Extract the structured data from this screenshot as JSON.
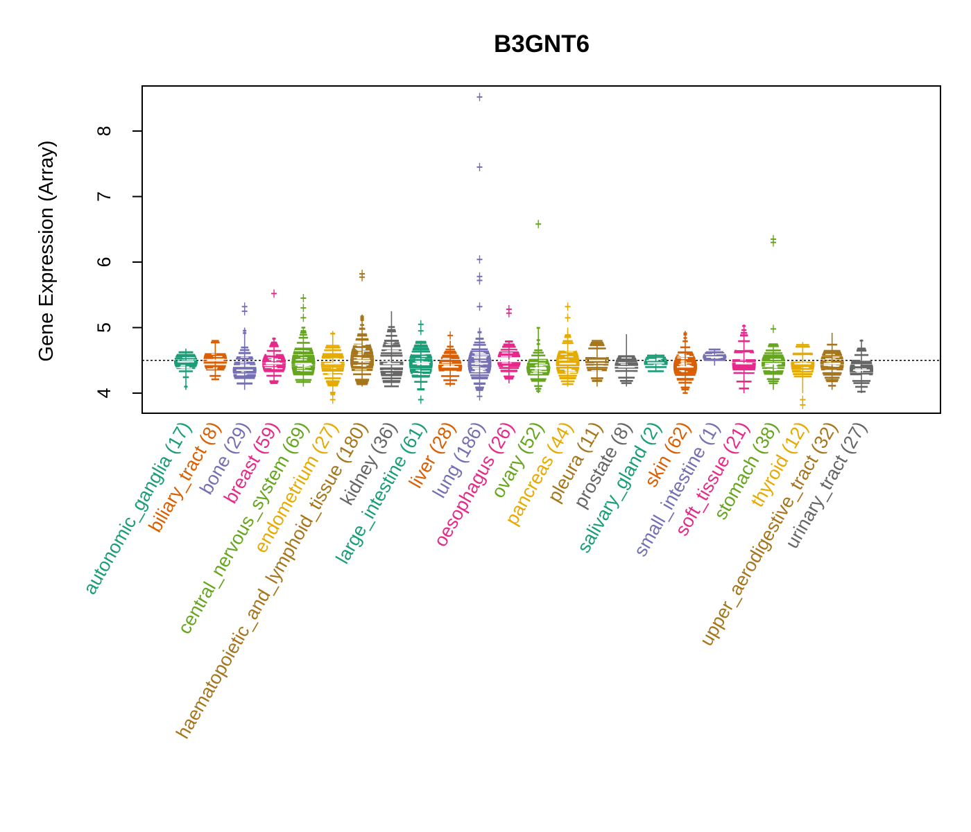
{
  "chart_data": {
    "type": "beeswarm",
    "title": "B3GNT6",
    "ylabel": "Gene Expression (Array)",
    "xlabel": "",
    "ylim": [
      3.7,
      8.7
    ],
    "yticks": [
      4,
      5,
      6,
      7,
      8
    ],
    "reference_line": 4.5,
    "grid": false,
    "legend": "none",
    "categories": [
      {
        "name": "autonomic_ganglia",
        "n": 17,
        "label": "autonomic_ganglia (17)",
        "color": "#1B9E77",
        "min": 4.05,
        "max": 4.68,
        "q1": 4.38,
        "median": 4.48,
        "q3": 4.55,
        "outliers": []
      },
      {
        "name": "biliary_tract",
        "n": 8,
        "label": "biliary_tract (8)",
        "color": "#D95F02",
        "min": 4.2,
        "max": 4.8,
        "q1": 4.35,
        "median": 4.5,
        "q3": 4.6,
        "outliers": []
      },
      {
        "name": "bone",
        "n": 29,
        "label": "bone (29)",
        "color": "#7570B3",
        "min": 4.05,
        "max": 5.0,
        "q1": 4.25,
        "median": 4.35,
        "q3": 4.55,
        "outliers": [
          5.25,
          5.32
        ]
      },
      {
        "name": "breast",
        "n": 59,
        "label": "breast (59)",
        "color": "#E7298A",
        "min": 4.15,
        "max": 4.85,
        "q1": 4.35,
        "median": 4.45,
        "q3": 4.6,
        "outliers": [
          5.52
        ]
      },
      {
        "name": "central_nervous_system",
        "n": 69,
        "label": "central_nervous_system (69)",
        "color": "#66A61E",
        "min": 4.1,
        "max": 5.0,
        "q1": 4.3,
        "median": 4.45,
        "q3": 4.7,
        "outliers": [
          5.15,
          5.3,
          5.45
        ]
      },
      {
        "name": "endometrium",
        "n": 27,
        "label": "endometrium (27)",
        "color": "#E6AB02",
        "min": 3.95,
        "max": 4.95,
        "q1": 4.25,
        "median": 4.45,
        "q3": 4.6,
        "outliers": [
          3.9
        ]
      },
      {
        "name": "haematopoietic_and_lymphoid_tissue",
        "n": 180,
        "label": "haematopoietic_and_lymphoid_tissue (180)",
        "color": "#A6761D",
        "min": 4.1,
        "max": 5.2,
        "q1": 4.35,
        "median": 4.5,
        "q3": 4.75,
        "outliers": [
          5.77,
          5.82
        ]
      },
      {
        "name": "kidney",
        "n": 36,
        "label": "kidney (36)",
        "color": "#666666",
        "min": 4.1,
        "max": 5.25,
        "q1": 4.3,
        "median": 4.45,
        "q3": 4.8,
        "outliers": []
      },
      {
        "name": "large_intestine",
        "n": 61,
        "label": "large_intestine (61)",
        "color": "#1B9E77",
        "min": 4.05,
        "max": 4.8,
        "q1": 4.25,
        "median": 4.45,
        "q3": 4.6,
        "outliers": [
          3.9,
          4.95,
          5.05
        ]
      },
      {
        "name": "liver",
        "n": 28,
        "label": "liver (28)",
        "color": "#D95F02",
        "min": 4.1,
        "max": 4.8,
        "q1": 4.3,
        "median": 4.4,
        "q3": 4.55,
        "outliers": [
          4.88
        ]
      },
      {
        "name": "lung",
        "n": 186,
        "label": "lung (186)",
        "color": "#7570B3",
        "min": 4.0,
        "max": 5.0,
        "q1": 4.3,
        "median": 4.45,
        "q3": 4.65,
        "outliers": [
          3.95,
          5.32,
          5.72,
          5.78,
          6.04,
          7.45,
          8.52
        ]
      },
      {
        "name": "oesophagus",
        "n": 26,
        "label": "oesophagus (26)",
        "color": "#E7298A",
        "min": 4.15,
        "max": 4.8,
        "q1": 4.4,
        "median": 4.5,
        "q3": 4.65,
        "outliers": [
          5.22,
          5.28
        ]
      },
      {
        "name": "ovary",
        "n": 52,
        "label": "ovary (52)",
        "color": "#66A61E",
        "min": 4.0,
        "max": 5.0,
        "q1": 4.28,
        "median": 4.38,
        "q3": 4.52,
        "outliers": [
          6.58
        ]
      },
      {
        "name": "pancreas",
        "n": 44,
        "label": "pancreas (44)",
        "color": "#E6AB02",
        "min": 4.1,
        "max": 5.0,
        "q1": 4.3,
        "median": 4.45,
        "q3": 4.65,
        "outliers": [
          5.15,
          5.32
        ]
      },
      {
        "name": "pleura",
        "n": 11,
        "label": "pleura (11)",
        "color": "#A6761D",
        "min": 4.1,
        "max": 4.8,
        "q1": 4.3,
        "median": 4.5,
        "q3": 4.62,
        "outliers": []
      },
      {
        "name": "prostate",
        "n": 8,
        "label": "prostate (8)",
        "color": "#666666",
        "min": 4.1,
        "max": 4.9,
        "q1": 4.3,
        "median": 4.4,
        "q3": 4.55,
        "outliers": []
      },
      {
        "name": "salivary_gland",
        "n": 2,
        "label": "salivary_gland (2)",
        "color": "#1B9E77",
        "min": 4.32,
        "max": 4.6,
        "q1": 4.38,
        "median": 4.46,
        "q3": 4.55,
        "outliers": []
      },
      {
        "name": "skin",
        "n": 62,
        "label": "skin (62)",
        "color": "#D95F02",
        "min": 4.0,
        "max": 4.95,
        "q1": 4.3,
        "median": 4.4,
        "q3": 4.6,
        "outliers": []
      },
      {
        "name": "small_intestine",
        "n": 1,
        "label": "small_intestine (1)",
        "color": "#7570B3",
        "min": 4.42,
        "max": 4.68,
        "q1": 4.5,
        "median": 4.55,
        "q3": 4.6,
        "outliers": []
      },
      {
        "name": "soft_tissue",
        "n": 21,
        "label": "soft_tissue (21)",
        "color": "#E7298A",
        "min": 4.0,
        "max": 5.05,
        "q1": 4.3,
        "median": 4.45,
        "q3": 4.7,
        "outliers": []
      },
      {
        "name": "stomach",
        "n": 38,
        "label": "stomach (38)",
        "color": "#66A61E",
        "min": 4.05,
        "max": 4.75,
        "q1": 4.3,
        "median": 4.45,
        "q3": 4.58,
        "outliers": [
          4.98,
          6.3,
          6.35
        ]
      },
      {
        "name": "thyroid",
        "n": 12,
        "label": "thyroid (12)",
        "color": "#E6AB02",
        "min": 4.0,
        "max": 4.78,
        "q1": 4.25,
        "median": 4.45,
        "q3": 4.6,
        "outliers": [
          3.82,
          3.9
        ]
      },
      {
        "name": "upper_aerodigestive_tract",
        "n": 32,
        "label": "upper_aerodigestive_tract (32)",
        "color": "#A6761D",
        "min": 4.05,
        "max": 4.92,
        "q1": 4.3,
        "median": 4.45,
        "q3": 4.6,
        "outliers": []
      },
      {
        "name": "urinary_tract",
        "n": 27,
        "label": "urinary_tract (27)",
        "color": "#666666",
        "min": 4.0,
        "max": 4.82,
        "q1": 4.25,
        "median": 4.35,
        "q3": 4.55,
        "outliers": []
      }
    ]
  }
}
